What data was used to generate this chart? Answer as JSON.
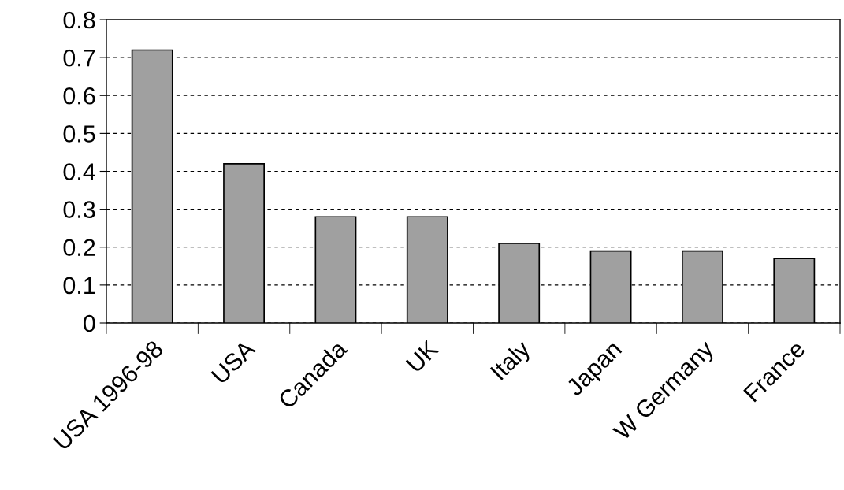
{
  "chart_data": {
    "type": "bar",
    "categories": [
      "USA 1996-98",
      "USA",
      "Canada",
      "UK",
      "Italy",
      "Japan",
      "W Germany",
      "France"
    ],
    "values": [
      0.72,
      0.42,
      0.28,
      0.28,
      0.21,
      0.19,
      0.19,
      0.17
    ],
    "color": "#a0a0a0",
    "ylim": [
      0,
      0.8
    ],
    "yticks": [
      0,
      0.1,
      0.2,
      0.3,
      0.4,
      0.5,
      0.6,
      0.7,
      0.8
    ],
    "grid": "y"
  }
}
